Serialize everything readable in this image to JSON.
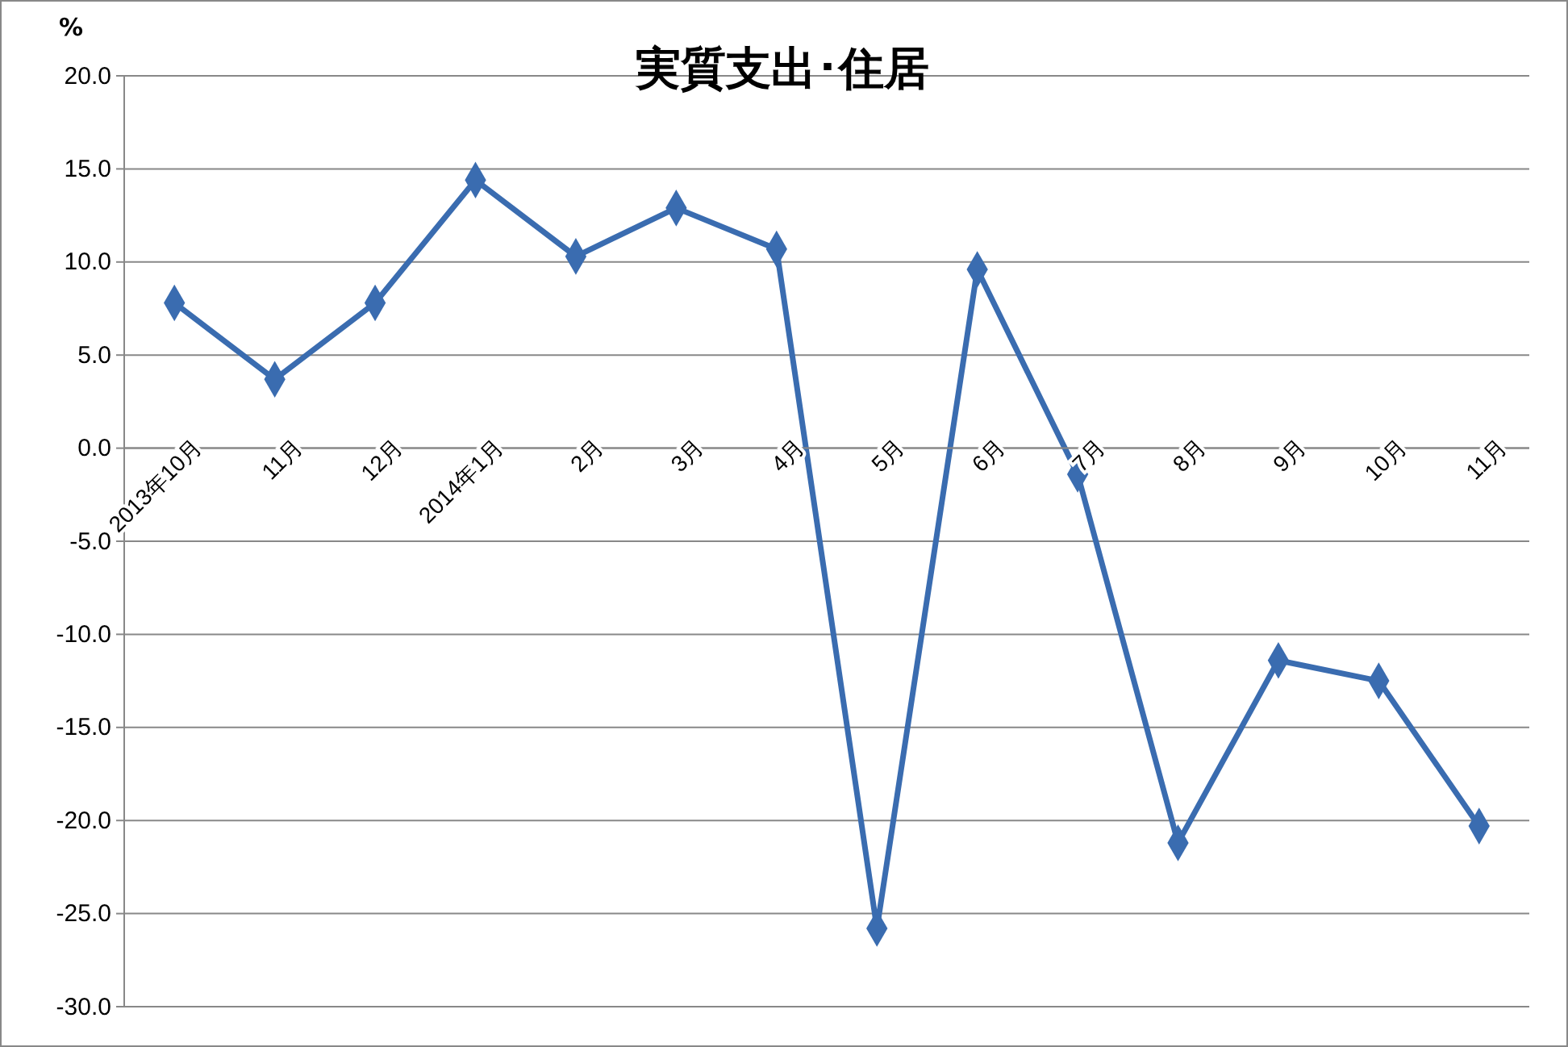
{
  "chart_data": {
    "type": "line",
    "title": "実質支出･住居",
    "ylabel": "%",
    "categories": [
      "2013年10月",
      "11月",
      "12月",
      "2014年1月",
      "2月",
      "3月",
      "4月",
      "5月",
      "6月",
      "7月",
      "8月",
      "9月",
      "10月",
      "11月"
    ],
    "series": [
      {
        "color": "#3a6cb0",
        "values": [
          7.8,
          3.7,
          7.8,
          14.4,
          10.3,
          12.9,
          10.7,
          -25.8,
          9.6,
          -1.4,
          -21.2,
          -11.4,
          -12.5,
          -20.3
        ]
      }
    ],
    "ylim": [
      -30,
      20
    ],
    "yticks": [
      {
        "value": -30,
        "label": "-30.0"
      },
      {
        "value": -25,
        "label": "-25.0"
      },
      {
        "value": -20,
        "label": "-20.0"
      },
      {
        "value": -15,
        "label": "-15.0"
      },
      {
        "value": -10,
        "label": "-10.0"
      },
      {
        "value": -5,
        "label": "-5.0"
      },
      {
        "value": 0,
        "label": "0.0"
      },
      {
        "value": 5,
        "label": "5.0"
      },
      {
        "value": 10,
        "label": "10.0"
      },
      {
        "value": 15,
        "label": "15.0"
      },
      {
        "value": 20,
        "label": "20.0"
      }
    ],
    "grid": "y",
    "marker": "diamond",
    "line_style": "solid"
  }
}
